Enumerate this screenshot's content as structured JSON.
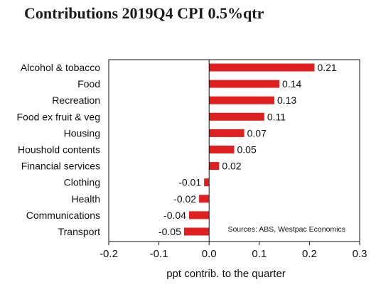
{
  "chart_data": {
    "type": "bar",
    "orientation": "horizontal",
    "title": "Contributions 2019Q4 CPI 0.5%qtr",
    "xlabel": "ppt contrib. to the quarter",
    "xlim": [
      -0.2,
      0.3
    ],
    "xticks": [
      "-0.2",
      "-0.1",
      "0.0",
      "0.1",
      "0.2",
      "0.3"
    ],
    "xtick_values": [
      -0.2,
      -0.1,
      0.0,
      0.1,
      0.2,
      0.3
    ],
    "categories": [
      "Alcohol & tobacco",
      "Food",
      "Recreation",
      "Food ex fruit & veg",
      "Housing",
      "Houshold contents",
      "Financial services",
      "Clothing",
      "Health",
      "Communications",
      "Transport"
    ],
    "values": [
      0.21,
      0.14,
      0.13,
      0.11,
      0.07,
      0.05,
      0.02,
      -0.01,
      -0.02,
      -0.04,
      -0.05
    ],
    "value_labels": [
      "0.21",
      "0.14",
      "0.13",
      "0.11",
      "0.07",
      "0.05",
      "0.02",
      "-0.01",
      "-0.02",
      "-0.04",
      "-0.05"
    ],
    "bar_color": "#e02020",
    "source_note": "Sources: ABS, Westpac Economics",
    "grid": false,
    "legend": "none"
  }
}
